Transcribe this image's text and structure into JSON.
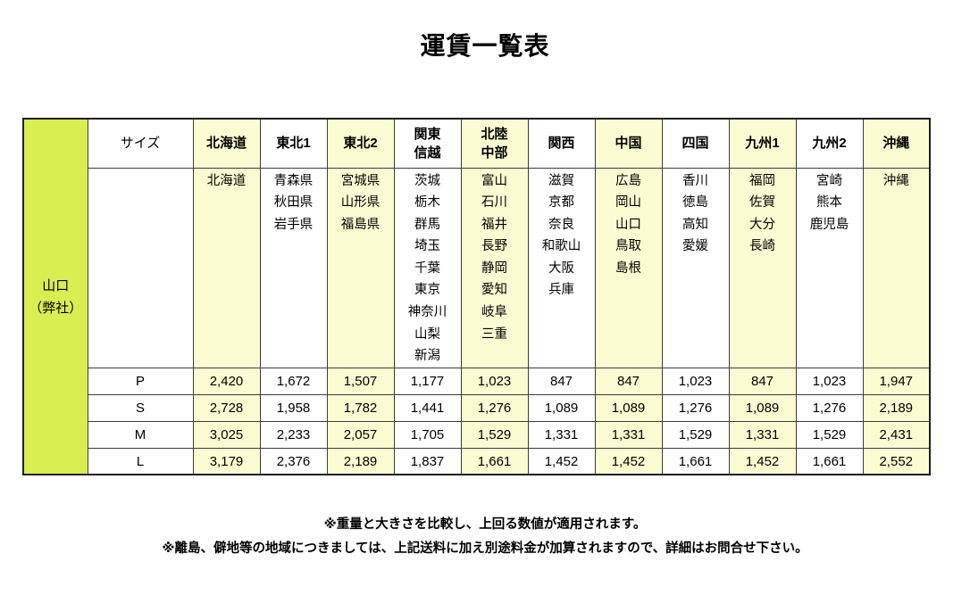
{
  "title": "運賃一覧表",
  "table": {
    "origin_label": "山口\n（弊社）",
    "size_header": "サイズ",
    "regions": [
      {
        "label": "北海道",
        "prefectures": [
          "北海道"
        ],
        "highlighted": true
      },
      {
        "label": "東北1",
        "prefectures": [
          "青森県",
          "秋田県",
          "岩手県"
        ],
        "highlighted": false
      },
      {
        "label": "東北2",
        "prefectures": [
          "宮城県",
          "山形県",
          "福島県"
        ],
        "highlighted": true
      },
      {
        "label": "関東\n信越",
        "prefectures": [
          "茨城",
          "栃木",
          "群馬",
          "埼玉",
          "千葉",
          "東京",
          "神奈川",
          "山梨",
          "新潟"
        ],
        "highlighted": false
      },
      {
        "label": "北陸\n中部",
        "prefectures": [
          "富山",
          "石川",
          "福井",
          "長野",
          "静岡",
          "愛知",
          "岐阜",
          "三重"
        ],
        "highlighted": true
      },
      {
        "label": "関西",
        "prefectures": [
          "滋賀",
          "京都",
          "奈良",
          "和歌山",
          "大阪",
          "兵庫"
        ],
        "highlighted": false
      },
      {
        "label": "中国",
        "prefectures": [
          "広島",
          "岡山",
          "山口",
          "鳥取",
          "島根"
        ],
        "highlighted": true
      },
      {
        "label": "四国",
        "prefectures": [
          "香川",
          "徳島",
          "高知",
          "愛媛"
        ],
        "highlighted": false
      },
      {
        "label": "九州1",
        "prefectures": [
          "福岡",
          "佐賀",
          "大分",
          "長崎"
        ],
        "highlighted": true
      },
      {
        "label": "九州2",
        "prefectures": [
          "宮崎",
          "熊本",
          "鹿児島"
        ],
        "highlighted": false
      },
      {
        "label": "沖縄",
        "prefectures": [
          "沖縄"
        ],
        "highlighted": true
      }
    ],
    "size_rows": [
      {
        "size": "P",
        "fares": [
          "2,420",
          "1,672",
          "1,507",
          "1,177",
          "1,023",
          "847",
          "847",
          "1,023",
          "847",
          "1,023",
          "1,947"
        ]
      },
      {
        "size": "S",
        "fares": [
          "2,728",
          "1,958",
          "1,782",
          "1,441",
          "1,276",
          "1,089",
          "1,089",
          "1,276",
          "1,089",
          "1,276",
          "2,189"
        ]
      },
      {
        "size": "M",
        "fares": [
          "3,025",
          "2,233",
          "2,057",
          "1,705",
          "1,529",
          "1,331",
          "1,331",
          "1,529",
          "1,331",
          "1,529",
          "2,431"
        ]
      },
      {
        "size": "L",
        "fares": [
          "3,179",
          "2,376",
          "2,189",
          "1,837",
          "1,661",
          "1,452",
          "1,452",
          "1,661",
          "1,452",
          "1,661",
          "2,552"
        ]
      }
    ]
  },
  "notes": [
    "※重量と大きさを比較し、上回る数値が適用されます。",
    "※離島、僻地等の地域につきましては、上記送料に加え別途料金が加算されますので、詳細はお問合せ下さい。"
  ],
  "colors": {
    "origin_bg": "#d9ee50",
    "highlight_bg": "#fcfcd2",
    "border_inner": "#3c3c3c",
    "border_outer": "#1e1e1e"
  }
}
